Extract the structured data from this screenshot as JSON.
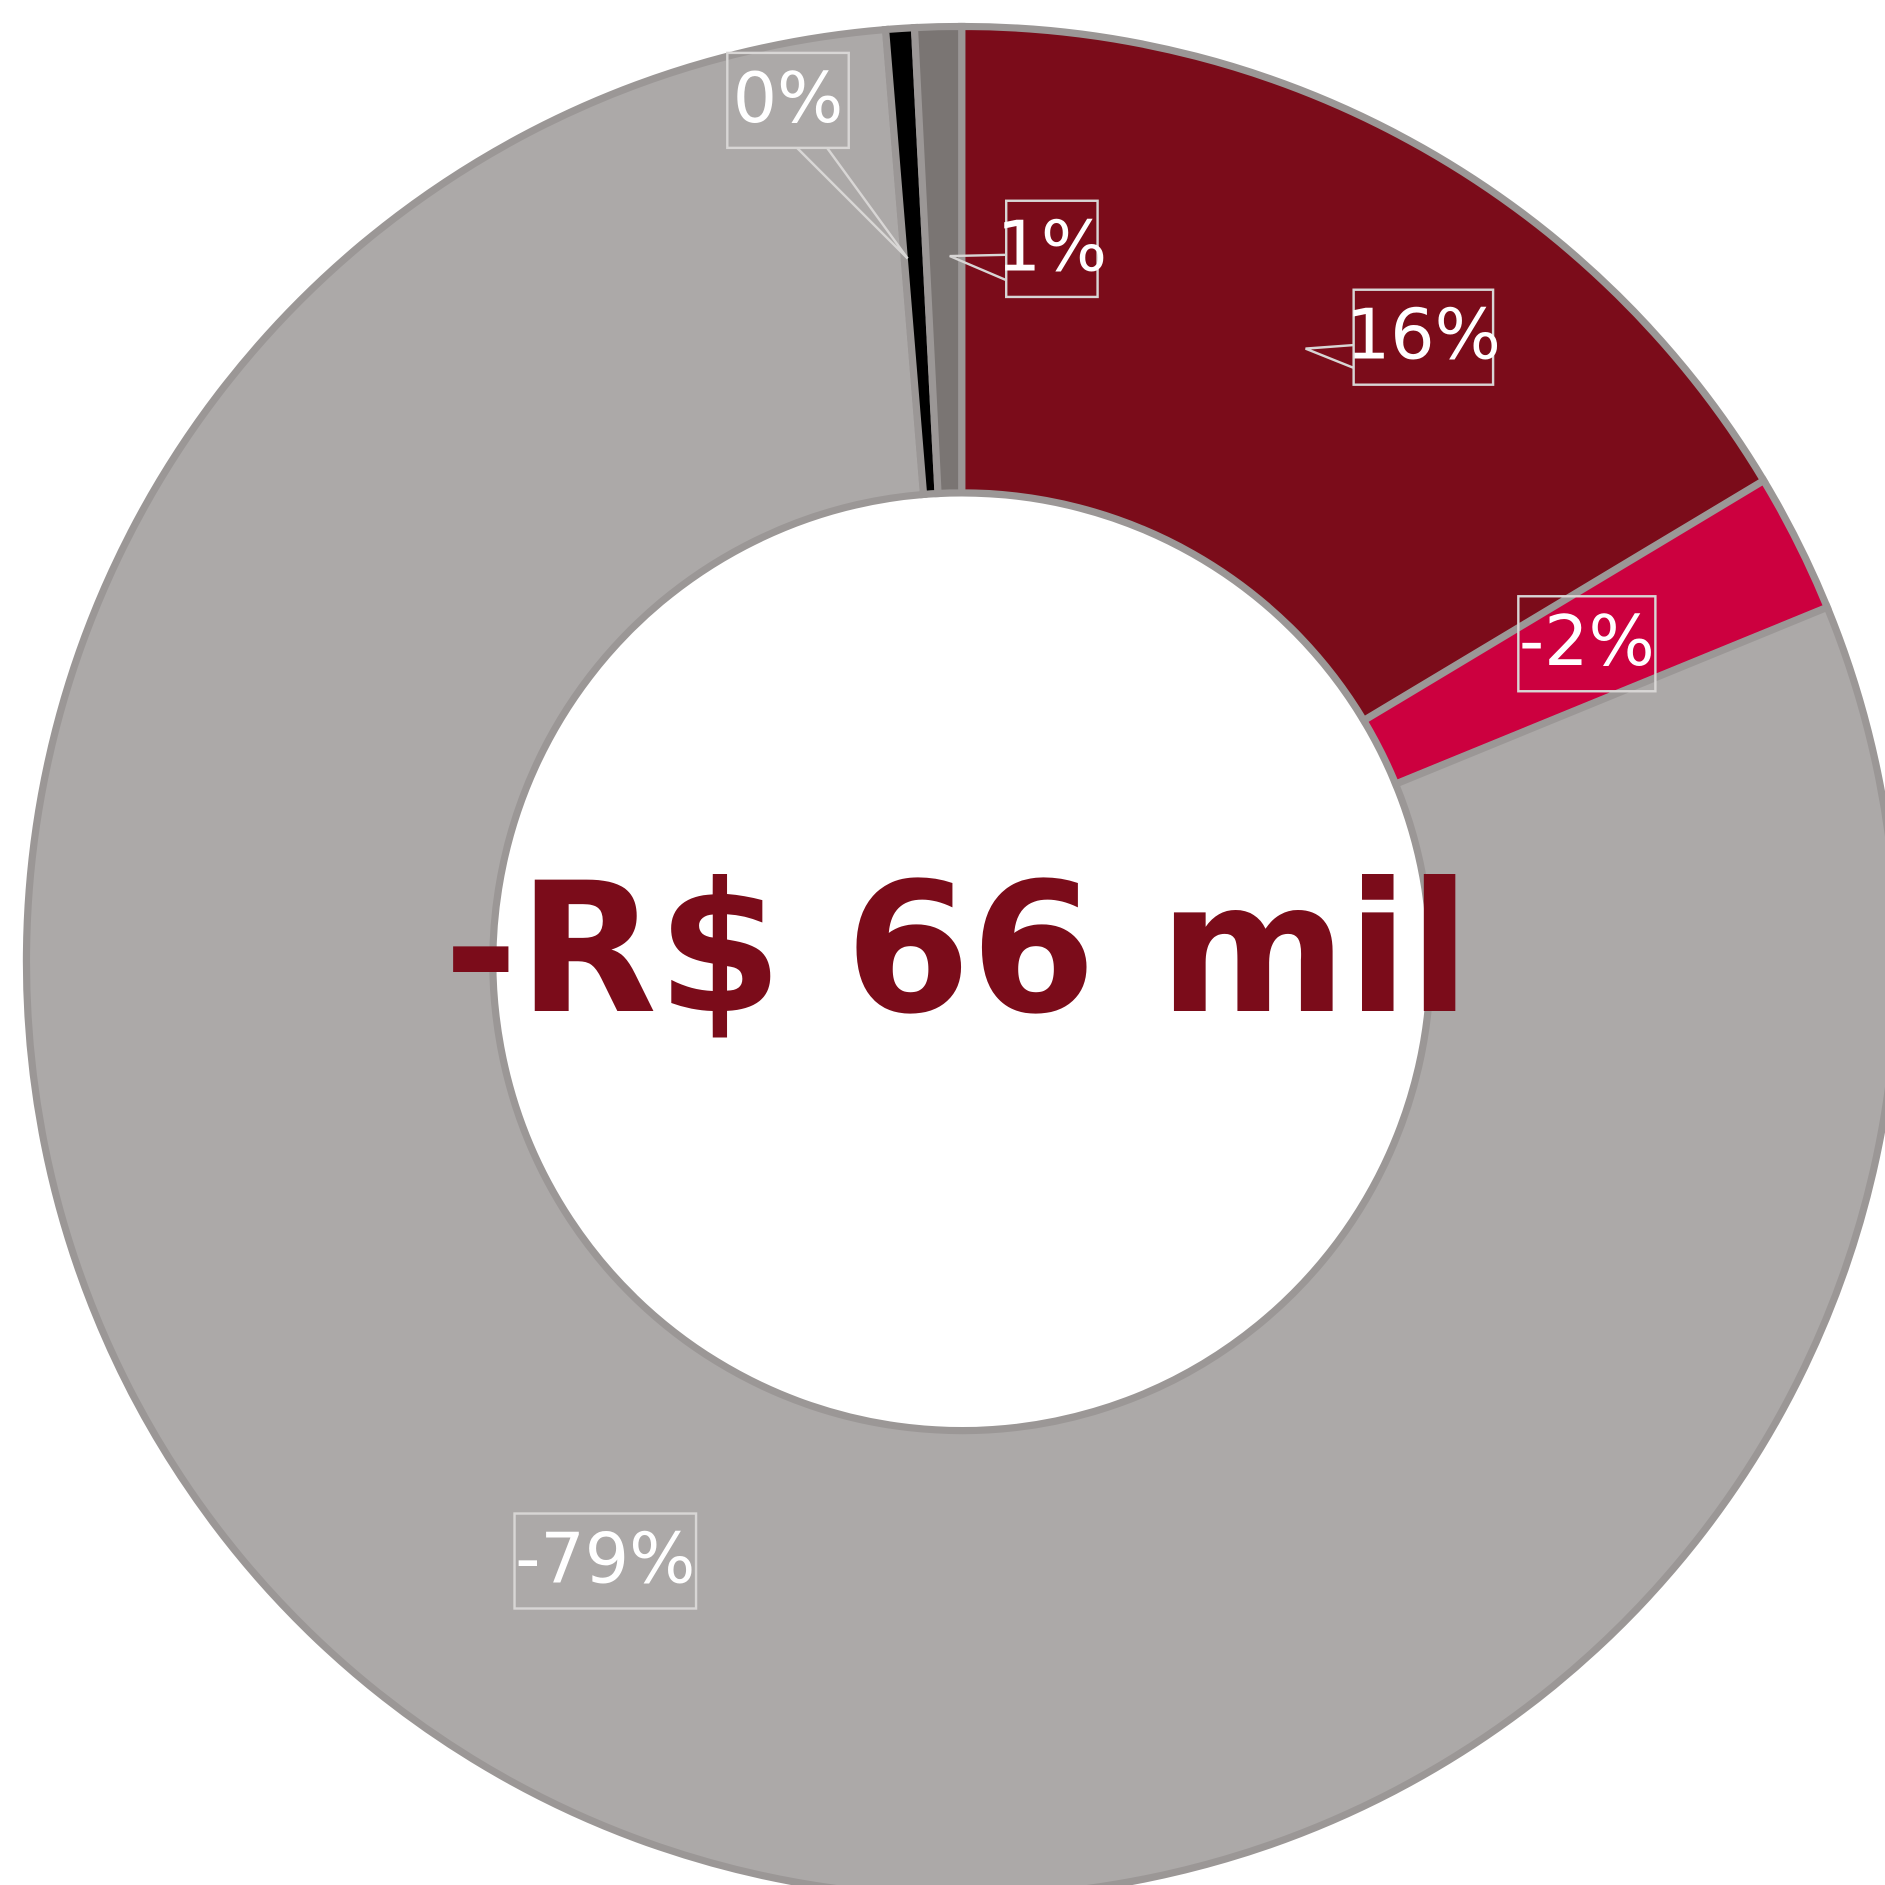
{
  "chart_data": {
    "type": "donut",
    "annotation": "-R$ 66 mil",
    "categories": [
      null,
      null,
      null,
      null,
      null
    ],
    "values": [
      16.3,
      -2.4,
      -79.4,
      0.49,
      0.8
    ],
    "value_labels": [
      "16%",
      "-2%",
      "-79%",
      "0%",
      "1%"
    ],
    "colors": [
      "#7b0c1a",
      "#cc003f",
      "#aca9a8",
      "#000000",
      "#7a7573"
    ]
  }
}
